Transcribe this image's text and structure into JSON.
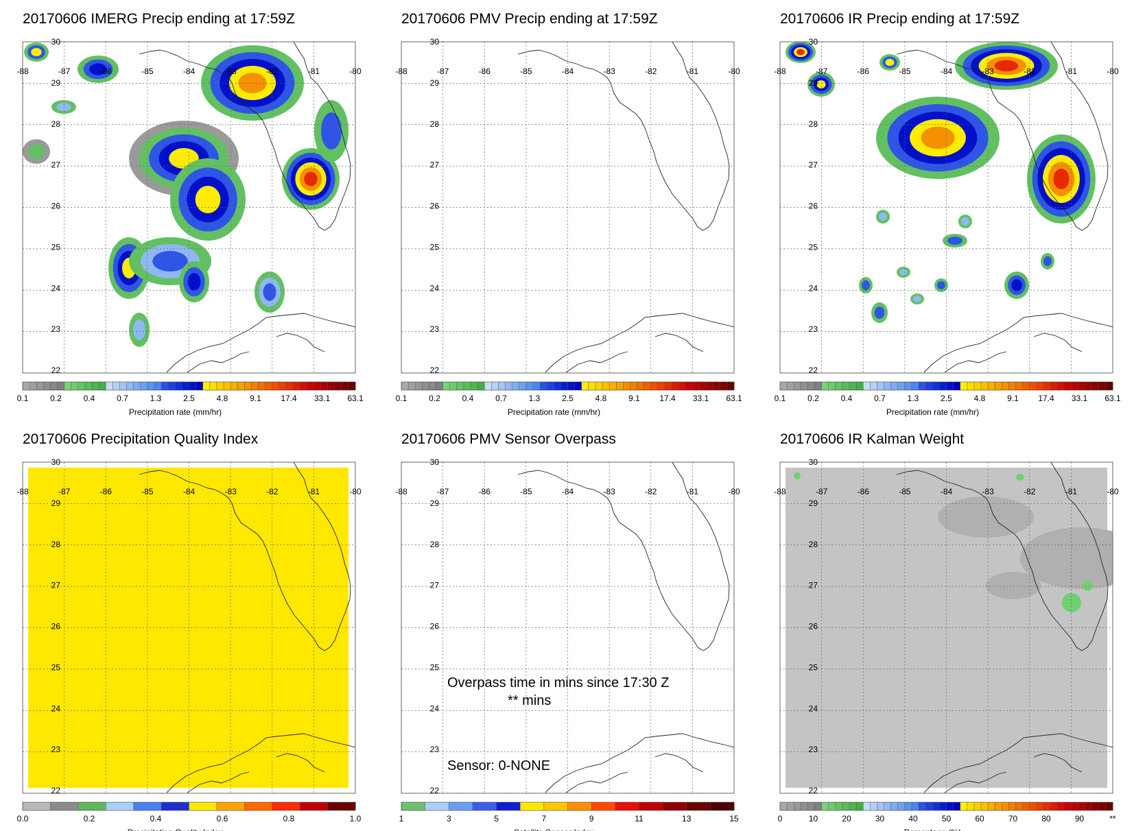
{
  "panels": [
    {
      "id": "imerg",
      "title": "20170606 IMERG Precip ending at 17:59Z",
      "colorbar": "precip",
      "background": "field"
    },
    {
      "id": "pmv",
      "title": "20170606 PMV Precip ending at 17:59Z",
      "colorbar": "precip",
      "background": "none"
    },
    {
      "id": "ir",
      "title": "20170606 IR Precip ending at 17:59Z",
      "colorbar": "precip",
      "background": "field"
    },
    {
      "id": "pqi",
      "title": "20170606 Precipitation Quality Index",
      "colorbar": "pqi",
      "background": "yellow"
    },
    {
      "id": "overpass",
      "title": "20170606 PMV Sensor Overpass",
      "colorbar": "sensor",
      "background": "none"
    },
    {
      "id": "kalman",
      "title": "20170606 IR Kalman Weight",
      "colorbar": "percent",
      "background": "gray"
    }
  ],
  "axes": {
    "lon_ticks": [
      "-88",
      "-87",
      "-86",
      "-85",
      "-84",
      "-83",
      "-82",
      "-81",
      "-80"
    ],
    "lat_ticks": [
      "30",
      "29",
      "28",
      "27",
      "26",
      "25",
      "24",
      "23",
      "22"
    ],
    "grid": "dotted"
  },
  "colorbars": {
    "precip": {
      "labels": [
        "0.1",
        "0.2",
        "0.4",
        "0.7",
        "1.3",
        "2.5",
        "4.8",
        "9.1",
        "17.4",
        "33.1",
        "63.1"
      ],
      "title": "Precipitation rate (mm/hr)",
      "colors": [
        "#a8a8a8",
        "#a0a0a0",
        "#989898",
        "#909090",
        "#888888",
        "#808080",
        "#7ad17a",
        "#6fca6f",
        "#64c364",
        "#59bc59",
        "#4eb54e",
        "#43ae43",
        "#c8dcf8",
        "#b6d0f6",
        "#a4c4f4",
        "#92b8f2",
        "#80acf0",
        "#6ea0ee",
        "#5c94ec",
        "#4a88ea",
        "#3050e8",
        "#2040e0",
        "#1030d8",
        "#0020d0",
        "#0010c8",
        "#0000c0",
        "#fff000",
        "#fde000",
        "#fbd000",
        "#f9c000",
        "#f7b000",
        "#f5a000",
        "#f39000",
        "#f18000",
        "#ef7000",
        "#ed6000",
        "#eb5000",
        "#e94000",
        "#e03000",
        "#d82000",
        "#d01000",
        "#c80000",
        "#b80000",
        "#a80000",
        "#980000",
        "#880000",
        "#780000",
        "#680000"
      ]
    },
    "pqi": {
      "labels": [
        "0.0",
        "0.2",
        "0.4",
        "0.6",
        "0.8",
        "1.0"
      ],
      "title": "Precipitation Quality Index",
      "colors": [
        "#b8b8b8",
        "#8c8c8c",
        "#5cb85c",
        "#a8d0f8",
        "#4a7ff0",
        "#1f2ed0",
        "#ffe800",
        "#ffa500",
        "#ff6a00",
        "#ff2a00",
        "#c00000",
        "#6a0000"
      ]
    },
    "sensor": {
      "labels": [
        "1",
        "3",
        "5",
        "7",
        "9",
        "11",
        "13",
        "15"
      ],
      "title": "Satellite Sensor Index",
      "colors": [
        "#6fc06f",
        "#a8d0f8",
        "#6a9ef2",
        "#3b5de8",
        "#1020d0",
        "#ffe800",
        "#ffc800",
        "#ff9000",
        "#ff4a00",
        "#e81000",
        "#c00000",
        "#900000",
        "#6a0000",
        "#4a0000"
      ]
    },
    "percent": {
      "labels": [
        "0",
        "10",
        "20",
        "30",
        "40",
        "50",
        "60",
        "70",
        "80",
        "90",
        "**"
      ],
      "title": "Percentage (%)",
      "colors": [
        "#a8a8a8",
        "#a0a0a0",
        "#989898",
        "#909090",
        "#888888",
        "#808080",
        "#7ad17a",
        "#6fca6f",
        "#64c364",
        "#59bc59",
        "#4eb54e",
        "#43ae43",
        "#c8dcf8",
        "#b6d0f6",
        "#a4c4f4",
        "#92b8f2",
        "#80acf0",
        "#6ea0ee",
        "#5c94ec",
        "#4a88ea",
        "#3050e8",
        "#2040e0",
        "#1030d8",
        "#0020d0",
        "#0010c8",
        "#0000c0",
        "#fff000",
        "#fde000",
        "#fbd000",
        "#f9c000",
        "#f7b000",
        "#f5a000",
        "#f39000",
        "#f18000",
        "#ef7000",
        "#ed6000",
        "#eb5000",
        "#e94000",
        "#e03000",
        "#d82000",
        "#d01000",
        "#c80000",
        "#b80000",
        "#a80000",
        "#980000",
        "#880000",
        "#780000",
        "#680000"
      ]
    }
  },
  "overpass_text": {
    "line1": "Overpass time in mins since 17:30 Z",
    "line2": "** mins",
    "sensor": "Sensor:   0-NONE"
  },
  "chart_data": [
    {
      "type": "heatmap",
      "title": "20170606 IMERG Precip ending at 17:59Z",
      "x_ticks": [
        -88,
        -87,
        -86,
        -85,
        -84,
        -83,
        -82,
        -81,
        -80
      ],
      "y_ticks": [
        22,
        23,
        24,
        25,
        26,
        27,
        28,
        29,
        30
      ],
      "colorbar_labels": [
        0.1,
        0.2,
        0.4,
        0.7,
        1.3,
        2.5,
        4.8,
        9.1,
        17.4,
        33.1,
        63.1
      ],
      "colorbar_title": "Precipitation rate (mm/hr)"
    },
    {
      "type": "heatmap",
      "title": "20170606 PMV Precip ending at 17:59Z",
      "x_ticks": [
        -88,
        -87,
        -86,
        -85,
        -84,
        -83,
        -82,
        -81,
        -80
      ],
      "y_ticks": [
        22,
        23,
        24,
        25,
        26,
        27,
        28,
        29,
        30
      ],
      "colorbar_labels": [
        0.1,
        0.2,
        0.4,
        0.7,
        1.3,
        2.5,
        4.8,
        9.1,
        17.4,
        33.1,
        63.1
      ],
      "colorbar_title": "Precipitation rate (mm/hr)"
    },
    {
      "type": "heatmap",
      "title": "20170606 IR Precip ending at 17:59Z",
      "x_ticks": [
        -88,
        -87,
        -86,
        -85,
        -84,
        -83,
        -82,
        -81,
        -80
      ],
      "y_ticks": [
        22,
        23,
        24,
        25,
        26,
        27,
        28,
        29,
        30
      ],
      "colorbar_labels": [
        0.1,
        0.2,
        0.4,
        0.7,
        1.3,
        2.5,
        4.8,
        9.1,
        17.4,
        33.1,
        63.1
      ],
      "colorbar_title": "Precipitation rate (mm/hr)"
    },
    {
      "type": "heatmap",
      "title": "20170606 Precipitation Quality Index",
      "x_ticks": [
        -88,
        -87,
        -86,
        -85,
        -84,
        -83,
        -82,
        -81,
        -80
      ],
      "y_ticks": [
        22,
        23,
        24,
        25,
        26,
        27,
        28,
        29,
        30
      ],
      "colorbar_labels": [
        0.0,
        0.2,
        0.4,
        0.6,
        0.8,
        1.0
      ],
      "colorbar_title": "Precipitation Quality Index"
    },
    {
      "type": "heatmap",
      "title": "20170606 PMV Sensor Overpass",
      "x_ticks": [
        -88,
        -87,
        -86,
        -85,
        -84,
        -83,
        -82,
        -81,
        -80
      ],
      "y_ticks": [
        22,
        23,
        24,
        25,
        26,
        27,
        28,
        29,
        30
      ],
      "colorbar_labels": [
        1,
        3,
        5,
        7,
        9,
        11,
        13,
        15
      ],
      "colorbar_title": "Satellite Sensor Index"
    },
    {
      "type": "heatmap",
      "title": "20170606 IR Kalman Weight",
      "x_ticks": [
        -88,
        -87,
        -86,
        -85,
        -84,
        -83,
        -82,
        -81,
        -80
      ],
      "y_ticks": [
        22,
        23,
        24,
        25,
        26,
        27,
        28,
        29,
        30
      ],
      "colorbar_labels": [
        "0",
        "10",
        "20",
        "30",
        "40",
        "50",
        "60",
        "70",
        "80",
        "90",
        "**"
      ],
      "colorbar_title": "Percentage (%)"
    }
  ]
}
